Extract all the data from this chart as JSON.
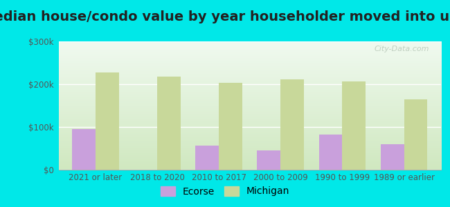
{
  "title": "Median house/condo value by year householder moved into unit",
  "categories": [
    "2021 or later",
    "2018 to 2020",
    "2010 to 2017",
    "2000 to 2009",
    "1990 to 1999",
    "1989 or earlier"
  ],
  "ecorse_values": [
    95000,
    0,
    57000,
    45000,
    82000,
    60000
  ],
  "michigan_values": [
    228000,
    218000,
    203000,
    212000,
    207000,
    165000
  ],
  "ecorse_color": "#c9a0dc",
  "michigan_color": "#c8d89a",
  "background_outer": "#00e8e8",
  "ylabel_ticks": [
    "$0",
    "$100k",
    "$200k",
    "$300k"
  ],
  "ytick_values": [
    0,
    100000,
    200000,
    300000
  ],
  "ylim": [
    0,
    300000
  ],
  "title_fontsize": 14,
  "tick_fontsize": 8.5,
  "legend_fontsize": 10,
  "watermark_text": "City-Data.com",
  "bar_width": 0.38
}
